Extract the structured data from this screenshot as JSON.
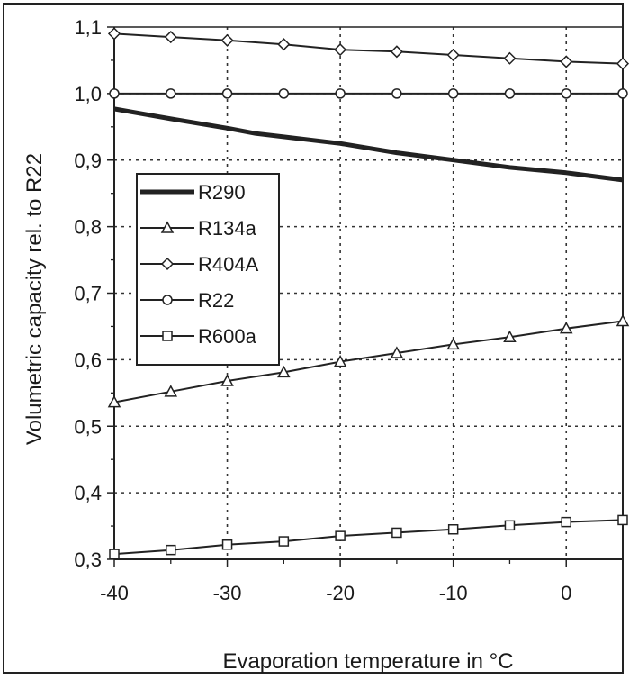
{
  "chart_data": {
    "type": "line",
    "xlabel": "Evaporation temperature in °C",
    "ylabel": "Volumetric capacity rel. to R22",
    "xlim": [
      -40,
      5
    ],
    "ylim": [
      0.3,
      1.1
    ],
    "x_ticks": [
      -40,
      -30,
      -20,
      -10,
      0
    ],
    "x_tick_labels": [
      "-40",
      "-30",
      "-20",
      "-10",
      "0"
    ],
    "y_ticks": [
      0.3,
      0.4,
      0.5,
      0.6,
      0.7,
      0.8,
      0.9,
      1.0,
      1.1
    ],
    "y_tick_labels": [
      "0,3",
      "0,4",
      "0,5",
      "0,6",
      "0,7",
      "0,8",
      "0,9",
      "1,0",
      "1,1"
    ],
    "grid": true,
    "legend_position": "left",
    "series": [
      {
        "name": "R290",
        "marker": "none",
        "x": [
          -40,
          -35,
          -30,
          -27.5,
          -25,
          -20,
          -15,
          -10,
          -5,
          0,
          5
        ],
        "y": [
          0.977,
          0.962,
          0.948,
          0.94,
          0.935,
          0.925,
          0.911,
          0.9,
          0.889,
          0.881,
          0.87
        ]
      },
      {
        "name": "R134a",
        "marker": "triangle",
        "x": [
          -40,
          -35,
          -30,
          -25,
          -20,
          -15,
          -10,
          -5,
          0,
          5
        ],
        "y": [
          0.536,
          0.552,
          0.568,
          0.581,
          0.597,
          0.61,
          0.623,
          0.634,
          0.647,
          0.658
        ]
      },
      {
        "name": "R404A",
        "marker": "diamond",
        "x": [
          -40,
          -35,
          -30,
          -25,
          -20,
          -15,
          -10,
          -5,
          0,
          5
        ],
        "y": [
          1.09,
          1.085,
          1.08,
          1.074,
          1.066,
          1.063,
          1.058,
          1.053,
          1.048,
          1.045
        ]
      },
      {
        "name": "R22",
        "marker": "circle",
        "x": [
          -40,
          -35,
          -30,
          -25,
          -20,
          -15,
          -10,
          -5,
          0,
          5
        ],
        "y": [
          1.0,
          1.0,
          1.0,
          1.0,
          1.0,
          1.0,
          1.0,
          1.0,
          1.0,
          1.0
        ]
      },
      {
        "name": "R600a",
        "marker": "square",
        "x": [
          -40,
          -35,
          -30,
          -25,
          -20,
          -15,
          -10,
          -5,
          0,
          5
        ],
        "y": [
          0.308,
          0.314,
          0.322,
          0.327,
          0.335,
          0.34,
          0.345,
          0.351,
          0.356,
          0.359
        ]
      }
    ]
  }
}
